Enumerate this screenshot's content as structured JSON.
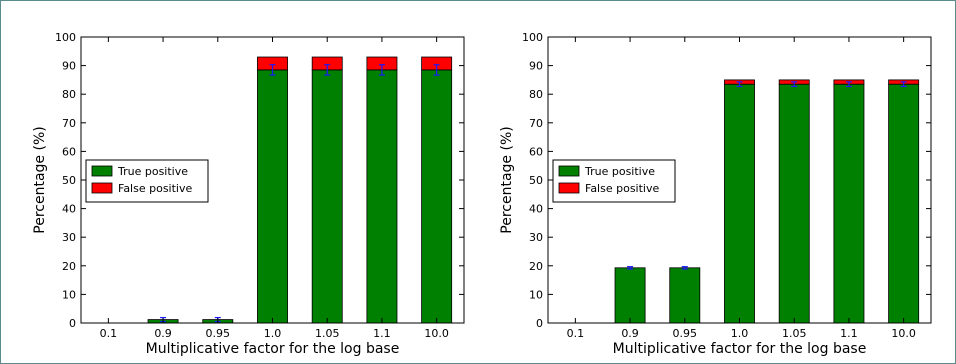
{
  "chart_data": [
    {
      "type": "bar",
      "stacked": true,
      "categories": [
        "0.1",
        "0.9",
        "0.95",
        "1.0",
        "1.05",
        "1.1",
        "10.0"
      ],
      "series": [
        {
          "name": "True positive",
          "color": "#008000",
          "values": [
            0,
            1.2,
            1.2,
            88.5,
            88.5,
            88.5,
            88.5
          ],
          "error": [
            0,
            0.7,
            0.7,
            1.8,
            1.8,
            1.8,
            1.8
          ]
        },
        {
          "name": "False positive",
          "color": "#ff0000",
          "values": [
            0,
            0,
            0,
            4.5,
            4.5,
            4.5,
            4.5
          ]
        }
      ],
      "xlabel": "Multiplicative factor for the log base",
      "ylabel": "Percentage (%)",
      "ylim": [
        0,
        100
      ],
      "yticks": [
        "0",
        "10",
        "20",
        "30",
        "40",
        "50",
        "60",
        "70",
        "80",
        "90",
        "100"
      ],
      "grid": false,
      "legend_placement": "center-left"
    },
    {
      "type": "bar",
      "stacked": true,
      "categories": [
        "0.1",
        "0.9",
        "0.95",
        "1.0",
        "1.05",
        "1.1",
        "10.0"
      ],
      "series": [
        {
          "name": "True positive",
          "color": "#008000",
          "values": [
            0,
            19.3,
            19.3,
            83.5,
            83.5,
            83.5,
            83.5
          ],
          "error": [
            0,
            0.4,
            0.4,
            0.8,
            0.8,
            0.8,
            0.8
          ]
        },
        {
          "name": "False positive",
          "color": "#ff0000",
          "values": [
            0,
            0,
            0,
            1.5,
            1.5,
            1.5,
            1.5
          ]
        }
      ],
      "xlabel": "Multiplicative factor for the log base",
      "ylabel": "Percentage (%)",
      "ylim": [
        0,
        100
      ],
      "yticks": [
        "0",
        "10",
        "20",
        "30",
        "40",
        "50",
        "60",
        "70",
        "80",
        "90",
        "100"
      ],
      "grid": false,
      "legend_placement": "center-left"
    }
  ]
}
